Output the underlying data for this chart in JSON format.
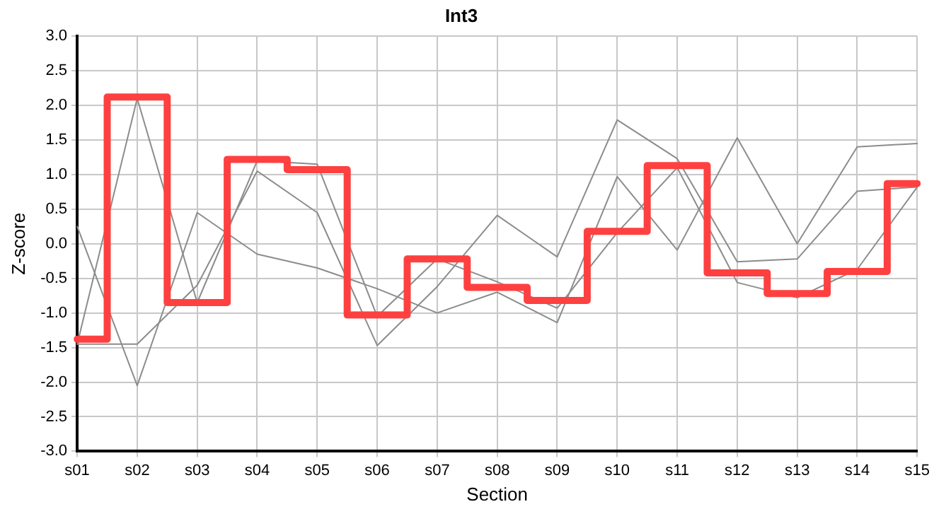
{
  "chart_data": {
    "type": "line",
    "title": "Int3",
    "xlabel": "Section",
    "ylabel": "Z-score",
    "categories": [
      "s01",
      "s02",
      "s03",
      "s04",
      "s05",
      "s06",
      "s07",
      "s08",
      "s09",
      "s10",
      "s11",
      "s12",
      "s13",
      "s14",
      "s15"
    ],
    "series": [
      {
        "color": "#8c8c8c",
        "values": [
          -1.45,
          2.1,
          -0.85,
          1.2,
          1.15,
          -1.05,
          -0.22,
          -0.55,
          -0.93,
          0.16,
          1.1,
          -0.56,
          -0.78,
          -0.37,
          0.82
        ]
      },
      {
        "color": "#8c8c8c",
        "values": [
          0.25,
          -2.05,
          0.45,
          -0.15,
          -0.35,
          -0.65,
          -1.0,
          -0.7,
          -1.14,
          0.97,
          -0.09,
          1.53,
          0.0,
          1.4,
          1.45
        ]
      },
      {
        "color": "#8c8c8c",
        "values": [
          -1.45,
          -1.45,
          -0.6,
          1.05,
          0.45,
          -1.47,
          -0.62,
          0.41,
          -0.19,
          1.79,
          1.23,
          -0.26,
          -0.22,
          0.76,
          0.82
        ]
      },
      {
        "type": "step",
        "color": "#ff4040",
        "values": [
          -1.38,
          2.12,
          -0.85,
          1.22,
          1.07,
          -1.03,
          -0.22,
          -0.63,
          -0.82,
          0.18,
          1.13,
          -0.42,
          -0.72,
          -0.4,
          0.87
        ]
      }
    ],
    "ylim": [
      -3,
      3
    ],
    "yticks": [
      {
        "value": -3,
        "label": "-3.0"
      },
      {
        "value": -2.5,
        "label": "-2.5"
      },
      {
        "value": -2,
        "label": "-2.0"
      },
      {
        "value": -1.5,
        "label": "-1.5"
      },
      {
        "value": -1,
        "label": "-1.0"
      },
      {
        "value": -0.5,
        "label": "-0.5"
      },
      {
        "value": 0,
        "label": "0.0"
      },
      {
        "value": 0.5,
        "label": "0.5"
      },
      {
        "value": 1,
        "label": "1.0"
      },
      {
        "value": 1.5,
        "label": "1.5"
      },
      {
        "value": 2,
        "label": "2.0"
      },
      {
        "value": 2.5,
        "label": "2.5"
      },
      {
        "value": 3,
        "label": "3.0"
      }
    ],
    "grid": true,
    "legend": false,
    "marker": "none",
    "line_style": "solid"
  }
}
